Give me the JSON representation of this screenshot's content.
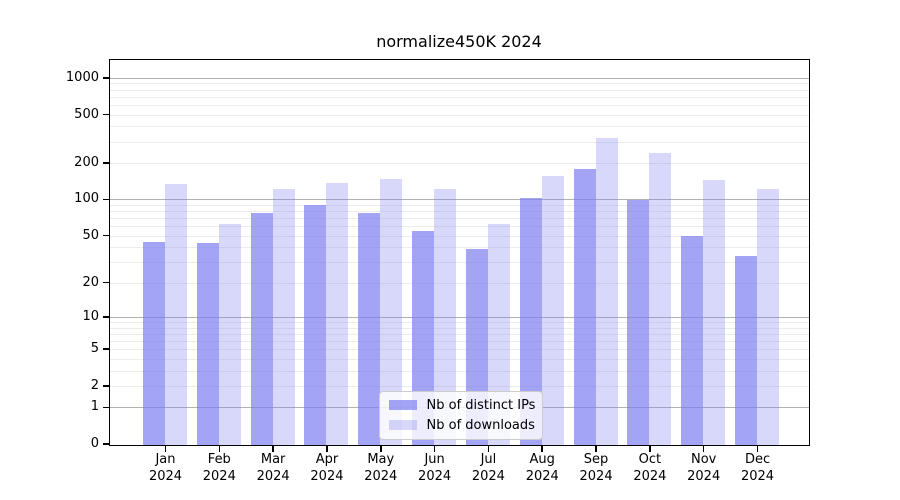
{
  "chart_data": {
    "type": "bar",
    "title": "normalize450K 2024",
    "categories": [
      "Jan",
      "Feb",
      "Mar",
      "Apr",
      "May",
      "Jun",
      "Jul",
      "Aug",
      "Sep",
      "Oct",
      "Nov",
      "Dec"
    ],
    "x_year": "2024",
    "series": [
      {
        "name": "Nb of distinct IPs",
        "alpha": 0.7,
        "values": [
          45,
          44,
          78,
          91,
          78,
          55,
          39,
          104,
          179,
          100,
          50,
          34
        ]
      },
      {
        "name": "Nb of downloads",
        "alpha": 0.3,
        "values": [
          136,
          63,
          122,
          138,
          148,
          124,
          63,
          158,
          327,
          245,
          147,
          124
        ]
      }
    ],
    "y_axis": {
      "scale": "log1p",
      "tick_labels": [
        "0",
        "1",
        "2",
        "5",
        "10",
        "20",
        "50",
        "100",
        "200",
        "500",
        "1000"
      ],
      "tick_values": [
        0,
        1,
        2,
        5,
        10,
        20,
        50,
        100,
        200,
        500,
        1000
      ],
      "major_gridlines": [
        1,
        10,
        100,
        1000
      ],
      "minor_gridlines": [
        3,
        4,
        6,
        7,
        8,
        9,
        30,
        40,
        60,
        70,
        80,
        90,
        300,
        400,
        600,
        700,
        800,
        900
      ],
      "axis_top_value": 1400
    },
    "legend": {
      "position": "lower center"
    },
    "grid": "on",
    "colors": {
      "bar_base_rgb": "125,125,240",
      "bar_dark": "#a7a7f1",
      "bar_light": "#d8d8f8",
      "grid_major": "#b2b2b2",
      "grid_minor": "#ececec",
      "spine": "#000000",
      "text": "#000000",
      "legend_border": "#cccccc"
    }
  }
}
